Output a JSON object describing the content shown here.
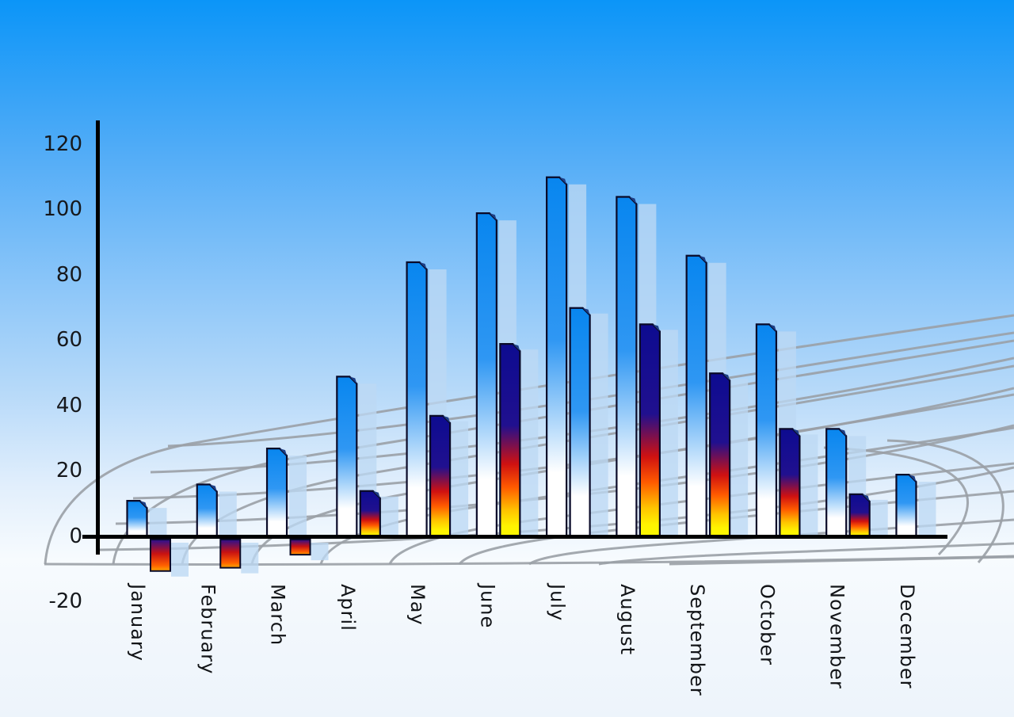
{
  "chart_data": {
    "type": "bar",
    "title": "",
    "xlabel": "",
    "ylabel": "",
    "categories": [
      "January",
      "February",
      "March",
      "April",
      "May",
      "June",
      "July",
      "August",
      "September",
      "October",
      "November",
      "December"
    ],
    "series": [
      {
        "name": "primary-blue-bars",
        "values": [
          11,
          16,
          27,
          49,
          84,
          99,
          110,
          104,
          86,
          65,
          33,
          19
        ]
      },
      {
        "name": "secondary-accent-bars",
        "values": [
          -10,
          -9,
          -5,
          14,
          37,
          59,
          70,
          65,
          50,
          33,
          13,
          null
        ],
        "bar_styles": [
          "fire",
          "fire",
          "fire",
          "fire",
          "fire",
          "fire",
          "blue",
          "fire",
          "fire",
          "fire",
          "fire",
          "none"
        ]
      }
    ],
    "y_axis": {
      "ticks": [
        "120",
        "100",
        "80",
        "60",
        "40",
        "20",
        "0",
        "-20"
      ],
      "tick_values": [
        120,
        100,
        80,
        60,
        40,
        20,
        0,
        -20
      ],
      "min": -20,
      "max": 120
    },
    "grid": true,
    "legend_position": "none"
  },
  "colors": {
    "sky_top": "#0b95f8",
    "sky_bottom": "#edf4fb",
    "bar_blue_top": "#0886ef",
    "bar_blue_mid": "#2f97f3",
    "bar_blue_bottom": "#ffffff",
    "fire_navy": "#0d0b90",
    "fire_red": "#cf1111",
    "fire_orange": "#ff5a00",
    "fire_yellow": "#fff400",
    "shadow_bar": "#bcd8f4",
    "grid_line": "#9aa0a6",
    "axis": "#000000",
    "label_text": "#121417",
    "bar_outline": "#0a0a28",
    "bevel_face": "#1e3f86"
  }
}
